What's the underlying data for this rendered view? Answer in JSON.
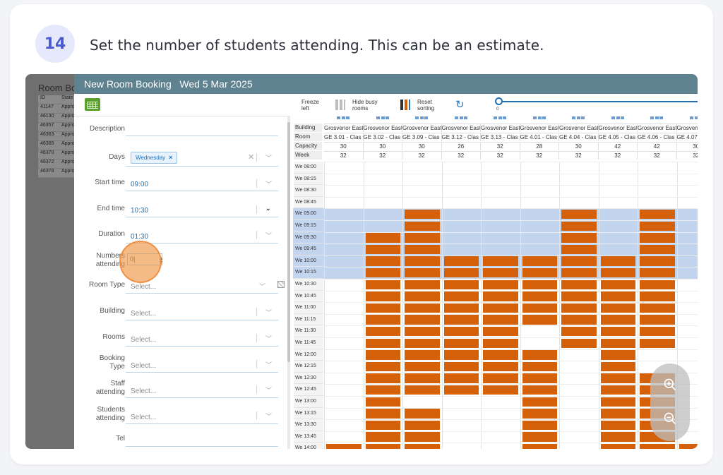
{
  "step": {
    "number": "14",
    "instruction": "Set the number of students attending. This can be an estimate."
  },
  "background_list": {
    "title": "Room Bo",
    "header": [
      "ID",
      "State"
    ],
    "rows": [
      [
        "41147",
        "Appro"
      ],
      [
        "46130",
        "Appro"
      ],
      [
        "46357",
        "Appro"
      ],
      [
        "46363",
        "Appro"
      ],
      [
        "46365",
        "Appro"
      ],
      [
        "46370",
        "Appro"
      ],
      [
        "46372",
        "Appro"
      ],
      [
        "46378",
        "Appro"
      ]
    ]
  },
  "modal": {
    "title": "New Room Booking",
    "date": "Wed 5 Mar 2025"
  },
  "form": {
    "description_label": "Description",
    "days_label": "Days",
    "days_chip": "Wednesday",
    "start_time_label": "Start time",
    "start_time_value": "09:00",
    "end_time_label": "End time",
    "end_time_value": "10:30",
    "duration_label": "Duration",
    "duration_value": "01:30",
    "numbers_label_1": "Numbers",
    "numbers_label_2": "attending",
    "numbers_value": "0|",
    "room_type_label": "Room Type",
    "building_label": "Building",
    "rooms_label": "Rooms",
    "booking_type_label_1": "Booking",
    "booking_type_label_2": "Type",
    "staff_label_1": "Staff",
    "staff_label_2": "attending",
    "students_label_1": "Students",
    "students_label_2": "attending",
    "tel_label": "Tel",
    "select_placeholder": "Select..."
  },
  "toolbar": {
    "freeze_1": "Freeze",
    "freeze_2": "left",
    "hide_1": "Hide busy",
    "hide_2": "rooms",
    "reset_1": "Reset",
    "reset_2": "sorting",
    "slider_value": "0"
  },
  "schedule": {
    "row_labels": [
      "Building",
      "Room",
      "Capacity",
      "Week"
    ],
    "rooms": [
      {
        "building": "Grosvenor East",
        "room": "GE 3.01 - Clas",
        "capacity": "30",
        "week": "32"
      },
      {
        "building": "Grosvenor East",
        "room": "GE 3.02 - Clas",
        "capacity": "30",
        "week": "32"
      },
      {
        "building": "Grosvenor East",
        "room": "GE 3.09 - Clas",
        "capacity": "30",
        "week": "32"
      },
      {
        "building": "Grosvenor East",
        "room": "GE 3.12 - Clas",
        "capacity": "26",
        "week": "32"
      },
      {
        "building": "Grosvenor East",
        "room": "GE 3.13 - Clas",
        "capacity": "32",
        "week": "32"
      },
      {
        "building": "Grosvenor East",
        "room": "GE 4.01 - Clas",
        "capacity": "28",
        "week": "32"
      },
      {
        "building": "Grosvenor East",
        "room": "GE 4.04 - Clas",
        "capacity": "30",
        "week": "32"
      },
      {
        "building": "Grosvenor East",
        "room": "GE 4.05 - Clas",
        "capacity": "42",
        "week": "32"
      },
      {
        "building": "Grosvenor East",
        "room": "GE 4.06 - Clas",
        "capacity": "42",
        "week": "32"
      },
      {
        "building": "Grosvenor",
        "room": "GE 4.07",
        "capacity": "30",
        "week": "32"
      }
    ],
    "times": [
      "We 08:00",
      "We 08:15",
      "We 08:30",
      "We 08:45",
      "We 09:00",
      "We 09:15",
      "We 09:30",
      "We 09:45",
      "We 10:00",
      "We 10:15",
      "We 10:30",
      "We 10:45",
      "We 11:00",
      "We 11:15",
      "We 11:30",
      "We 11:45",
      "We 12:00",
      "We 12:15",
      "We 12:30",
      "We 12:45",
      "We 13:00",
      "We 13:15",
      "We 13:30",
      "We 13:45",
      "We 14:00"
    ],
    "selected_slots": [
      4,
      9
    ],
    "busy_color": "#d4600a",
    "highlight_color": "#c2d4ee",
    "busy": [
      [
        [
          24,
          24
        ]
      ],
      [
        [
          6,
          24
        ]
      ],
      [
        [
          4,
          19
        ],
        [
          21,
          24
        ]
      ],
      [
        [
          8,
          19
        ]
      ],
      [
        [
          8,
          19
        ]
      ],
      [
        [
          8,
          13
        ],
        [
          16,
          24
        ]
      ],
      [
        [
          4,
          15
        ]
      ],
      [
        [
          8,
          24
        ]
      ],
      [
        [
          4,
          15
        ],
        [
          18,
          24
        ]
      ],
      [
        [
          24,
          24
        ]
      ]
    ]
  }
}
